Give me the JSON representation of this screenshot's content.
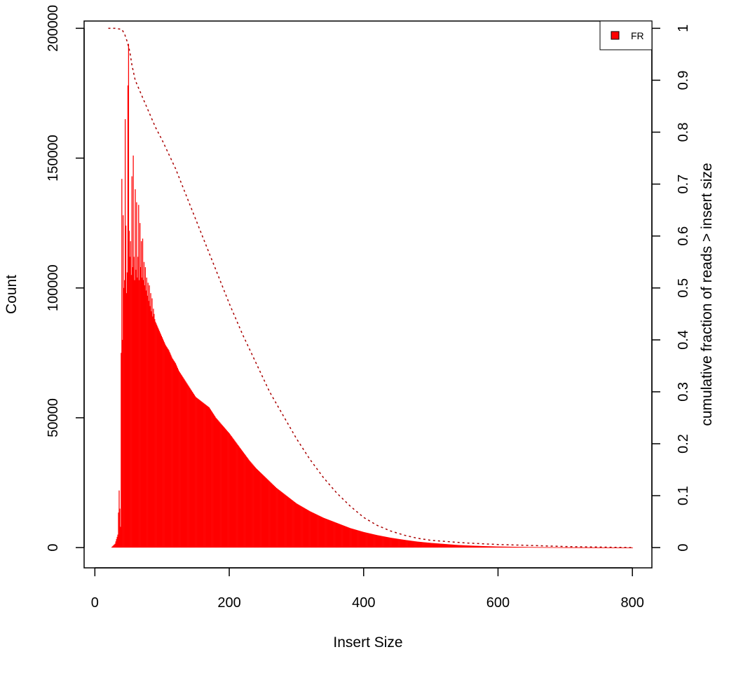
{
  "chart_data": {
    "type": "bar",
    "title": "",
    "xlabel": "Insert Size",
    "ylabel": "Count",
    "y2label": "cumulative fraction of reads > insert size",
    "xlim": [
      -16,
      829
    ],
    "ylim": [
      -7800,
      202800
    ],
    "y2lim": [
      0,
      1
    ],
    "x_ticks": [
      "0",
      "200",
      "400",
      "600",
      "800"
    ],
    "y_ticks": [
      "0",
      "50000",
      "100000",
      "150000",
      "200000"
    ],
    "y2_ticks": [
      "0",
      "0.1",
      "0.2",
      "0.3",
      "0.4",
      "0.5",
      "0.6",
      "0.7",
      "0.8",
      "0.9",
      "1"
    ],
    "grid": false,
    "legend": {
      "position": "top-right",
      "entries": [
        {
          "label": "FR",
          "color": "#ff0000"
        }
      ]
    },
    "series": [
      {
        "name": "FR",
        "kind": "histogram",
        "color": "#ff0000",
        "x": [
          25,
          30,
          34,
          36,
          38,
          40,
          41,
          42,
          43,
          44,
          45,
          46,
          47,
          48,
          49,
          50,
          51,
          52,
          53,
          54,
          55,
          56,
          57,
          58,
          59,
          60,
          61,
          62,
          63,
          64,
          65,
          66,
          67,
          68,
          69,
          70,
          71,
          72,
          73,
          74,
          75,
          76,
          77,
          78,
          79,
          80,
          81,
          82,
          83,
          84,
          85,
          86,
          87,
          88,
          89,
          90,
          95,
          100,
          105,
          110,
          115,
          120,
          125,
          130,
          135,
          140,
          145,
          150,
          155,
          160,
          165,
          170,
          175,
          180,
          190,
          200,
          210,
          220,
          230,
          240,
          250,
          260,
          270,
          280,
          290,
          300,
          320,
          340,
          360,
          380,
          400,
          420,
          440,
          460,
          480,
          500,
          520,
          540,
          560,
          580,
          600,
          650,
          700,
          750,
          800
        ],
        "values": [
          200,
          1500,
          5000,
          22000,
          8000,
          142000,
          80000,
          128000,
          100000,
          103000,
          165000,
          124000,
          98000,
          106000,
          178000,
          194000,
          122000,
          112000,
          118000,
          105000,
          143000,
          108000,
          151000,
          112000,
          103000,
          138000,
          107000,
          133000,
          104000,
          112000,
          132000,
          103000,
          125000,
          108000,
          118000,
          104000,
          119000,
          103000,
          110000,
          101000,
          108000,
          99000,
          104000,
          97000,
          102000,
          95000,
          101000,
          93000,
          98000,
          91000,
          96000,
          89000,
          92000,
          90000,
          88000,
          87000,
          84000,
          81000,
          78000,
          76000,
          73000,
          71000,
          68000,
          66000,
          64000,
          62000,
          60000,
          58000,
          57000,
          56000,
          55000,
          54000,
          52000,
          50000,
          47000,
          44000,
          40500,
          37000,
          33500,
          30500,
          28000,
          25500,
          23000,
          21000,
          19000,
          17000,
          14000,
          11500,
          9500,
          7500,
          6000,
          4800,
          3800,
          3000,
          2300,
          1800,
          1400,
          1000,
          750,
          550,
          400,
          200,
          90,
          40,
          10
        ]
      },
      {
        "name": "cumulative fraction of reads > insert size",
        "kind": "line",
        "axis": "right",
        "color": "#aa0000",
        "x": [
          20,
          30,
          40,
          44,
          48,
          50,
          52,
          55,
          60,
          70,
          80,
          90,
          100,
          120,
          140,
          160,
          180,
          200,
          220,
          240,
          260,
          280,
          300,
          320,
          340,
          360,
          380,
          400,
          420,
          440,
          460,
          480,
          500,
          550,
          600,
          650,
          700,
          800
        ],
        "values": [
          1.0,
          1.0,
          0.998,
          0.99,
          0.975,
          0.965,
          0.955,
          0.93,
          0.9,
          0.87,
          0.84,
          0.81,
          0.785,
          0.73,
          0.665,
          0.6,
          0.535,
          0.47,
          0.41,
          0.355,
          0.3,
          0.255,
          0.21,
          0.17,
          0.135,
          0.105,
          0.08,
          0.058,
          0.043,
          0.032,
          0.024,
          0.018,
          0.014,
          0.009,
          0.006,
          0.004,
          0.002,
          0.0
        ]
      }
    ]
  }
}
